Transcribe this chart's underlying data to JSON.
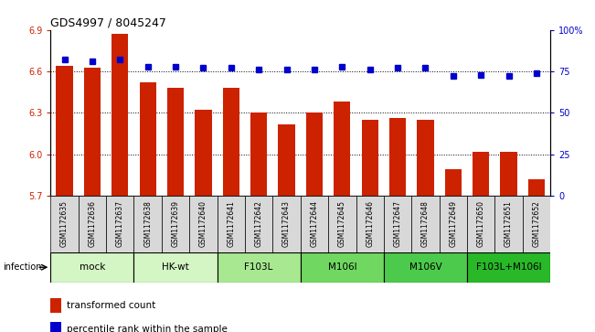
{
  "title": "GDS4997 / 8045247",
  "samples": [
    "GSM1172635",
    "GSM1172636",
    "GSM1172637",
    "GSM1172638",
    "GSM1172639",
    "GSM1172640",
    "GSM1172641",
    "GSM1172642",
    "GSM1172643",
    "GSM1172644",
    "GSM1172645",
    "GSM1172646",
    "GSM1172647",
    "GSM1172648",
    "GSM1172649",
    "GSM1172650",
    "GSM1172651",
    "GSM1172652"
  ],
  "red_values": [
    6.64,
    6.63,
    6.87,
    6.52,
    6.48,
    6.32,
    6.48,
    6.3,
    6.22,
    6.3,
    6.38,
    6.25,
    6.26,
    6.25,
    5.89,
    6.02,
    6.02,
    5.82
  ],
  "blue_values": [
    82,
    81,
    82,
    78,
    78,
    77,
    77,
    76,
    76,
    76,
    78,
    76,
    77,
    77,
    72,
    73,
    72,
    74
  ],
  "groups": [
    {
      "label": "mock",
      "start": 0,
      "end": 3,
      "color": "#d4f5c4"
    },
    {
      "label": "HK-wt",
      "start": 3,
      "end": 6,
      "color": "#d4f5c4"
    },
    {
      "label": "F103L",
      "start": 6,
      "end": 9,
      "color": "#a8e890"
    },
    {
      "label": "M106I",
      "start": 9,
      "end": 12,
      "color": "#70d860"
    },
    {
      "label": "M106V",
      "start": 12,
      "end": 15,
      "color": "#4cca4c"
    },
    {
      "label": "F103L+M106I",
      "start": 15,
      "end": 18,
      "color": "#28b828"
    }
  ],
  "ylim_left": [
    5.7,
    6.9
  ],
  "ylim_right": [
    0,
    100
  ],
  "yticks_left": [
    5.7,
    6.0,
    6.3,
    6.6,
    6.9
  ],
  "yticks_right": [
    0,
    25,
    50,
    75,
    100
  ],
  "bar_color": "#cc2200",
  "dot_color": "#0000cc",
  "infection_label": "infection",
  "legend_red": "transformed count",
  "legend_blue": "percentile rank within the sample"
}
